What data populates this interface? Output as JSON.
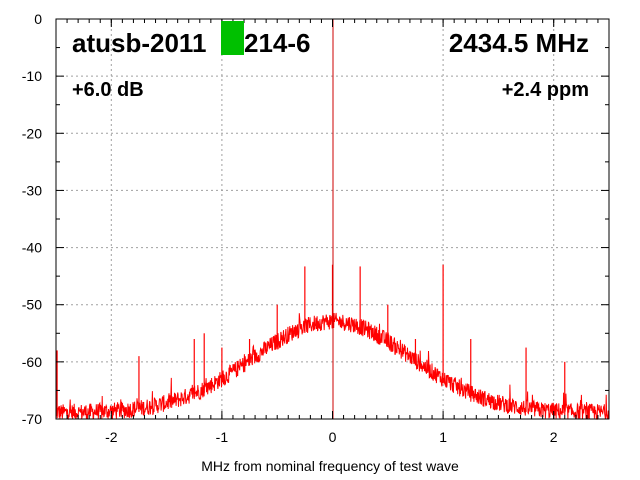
{
  "chart_data": {
    "type": "line",
    "title_left": "atusb-2011",
    "title_right": "214-6",
    "frequency_label": "2434.5 MHz",
    "gain_label": "+6.0 dB",
    "ppm_label": "+2.4 ppm",
    "xlabel": "MHz from nominal frequency of test wave",
    "ylabel": "",
    "xlim": [
      -2.5,
      2.5
    ],
    "ylim": [
      -70,
      0
    ],
    "xticks": [
      -2,
      -1,
      0,
      1,
      2
    ],
    "xtick_labels": [
      "-2",
      "-1",
      "0",
      "1",
      "2"
    ],
    "yticks": [
      0,
      -10,
      -20,
      -30,
      -40,
      -50,
      -60,
      -70
    ],
    "ytick_labels": [
      "0",
      "-10",
      "-20",
      "-30",
      "-40",
      "-50",
      "-60",
      "-70"
    ],
    "grid": true,
    "series": [
      {
        "name": "spectrum",
        "color": "#ff0000",
        "envelope": {
          "peak_db": -54,
          "floor_db": -69.5,
          "sigma_mhz": 0.71,
          "noise_db": 1.5
        },
        "spikes": [
          {
            "x": -2.49,
            "y": -58
          },
          {
            "x": -1.75,
            "y": -59
          },
          {
            "x": -1.25,
            "y": -56
          },
          {
            "x": -1.16,
            "y": -55
          },
          {
            "x": -1.0,
            "y": -57.5
          },
          {
            "x": -0.75,
            "y": -56
          },
          {
            "x": -0.5,
            "y": -50
          },
          {
            "x": -0.25,
            "y": -43.3
          },
          {
            "x": 0.0,
            "y": -43
          },
          {
            "x": 0.25,
            "y": -43.3
          },
          {
            "x": 0.5,
            "y": -50
          },
          {
            "x": 0.75,
            "y": -56
          },
          {
            "x": 1.0,
            "y": -43
          },
          {
            "x": 1.25,
            "y": -56
          },
          {
            "x": 1.75,
            "y": -57.5
          },
          {
            "x": 2.1,
            "y": -60
          }
        ]
      }
    ],
    "redaction_color": "#00c000"
  }
}
